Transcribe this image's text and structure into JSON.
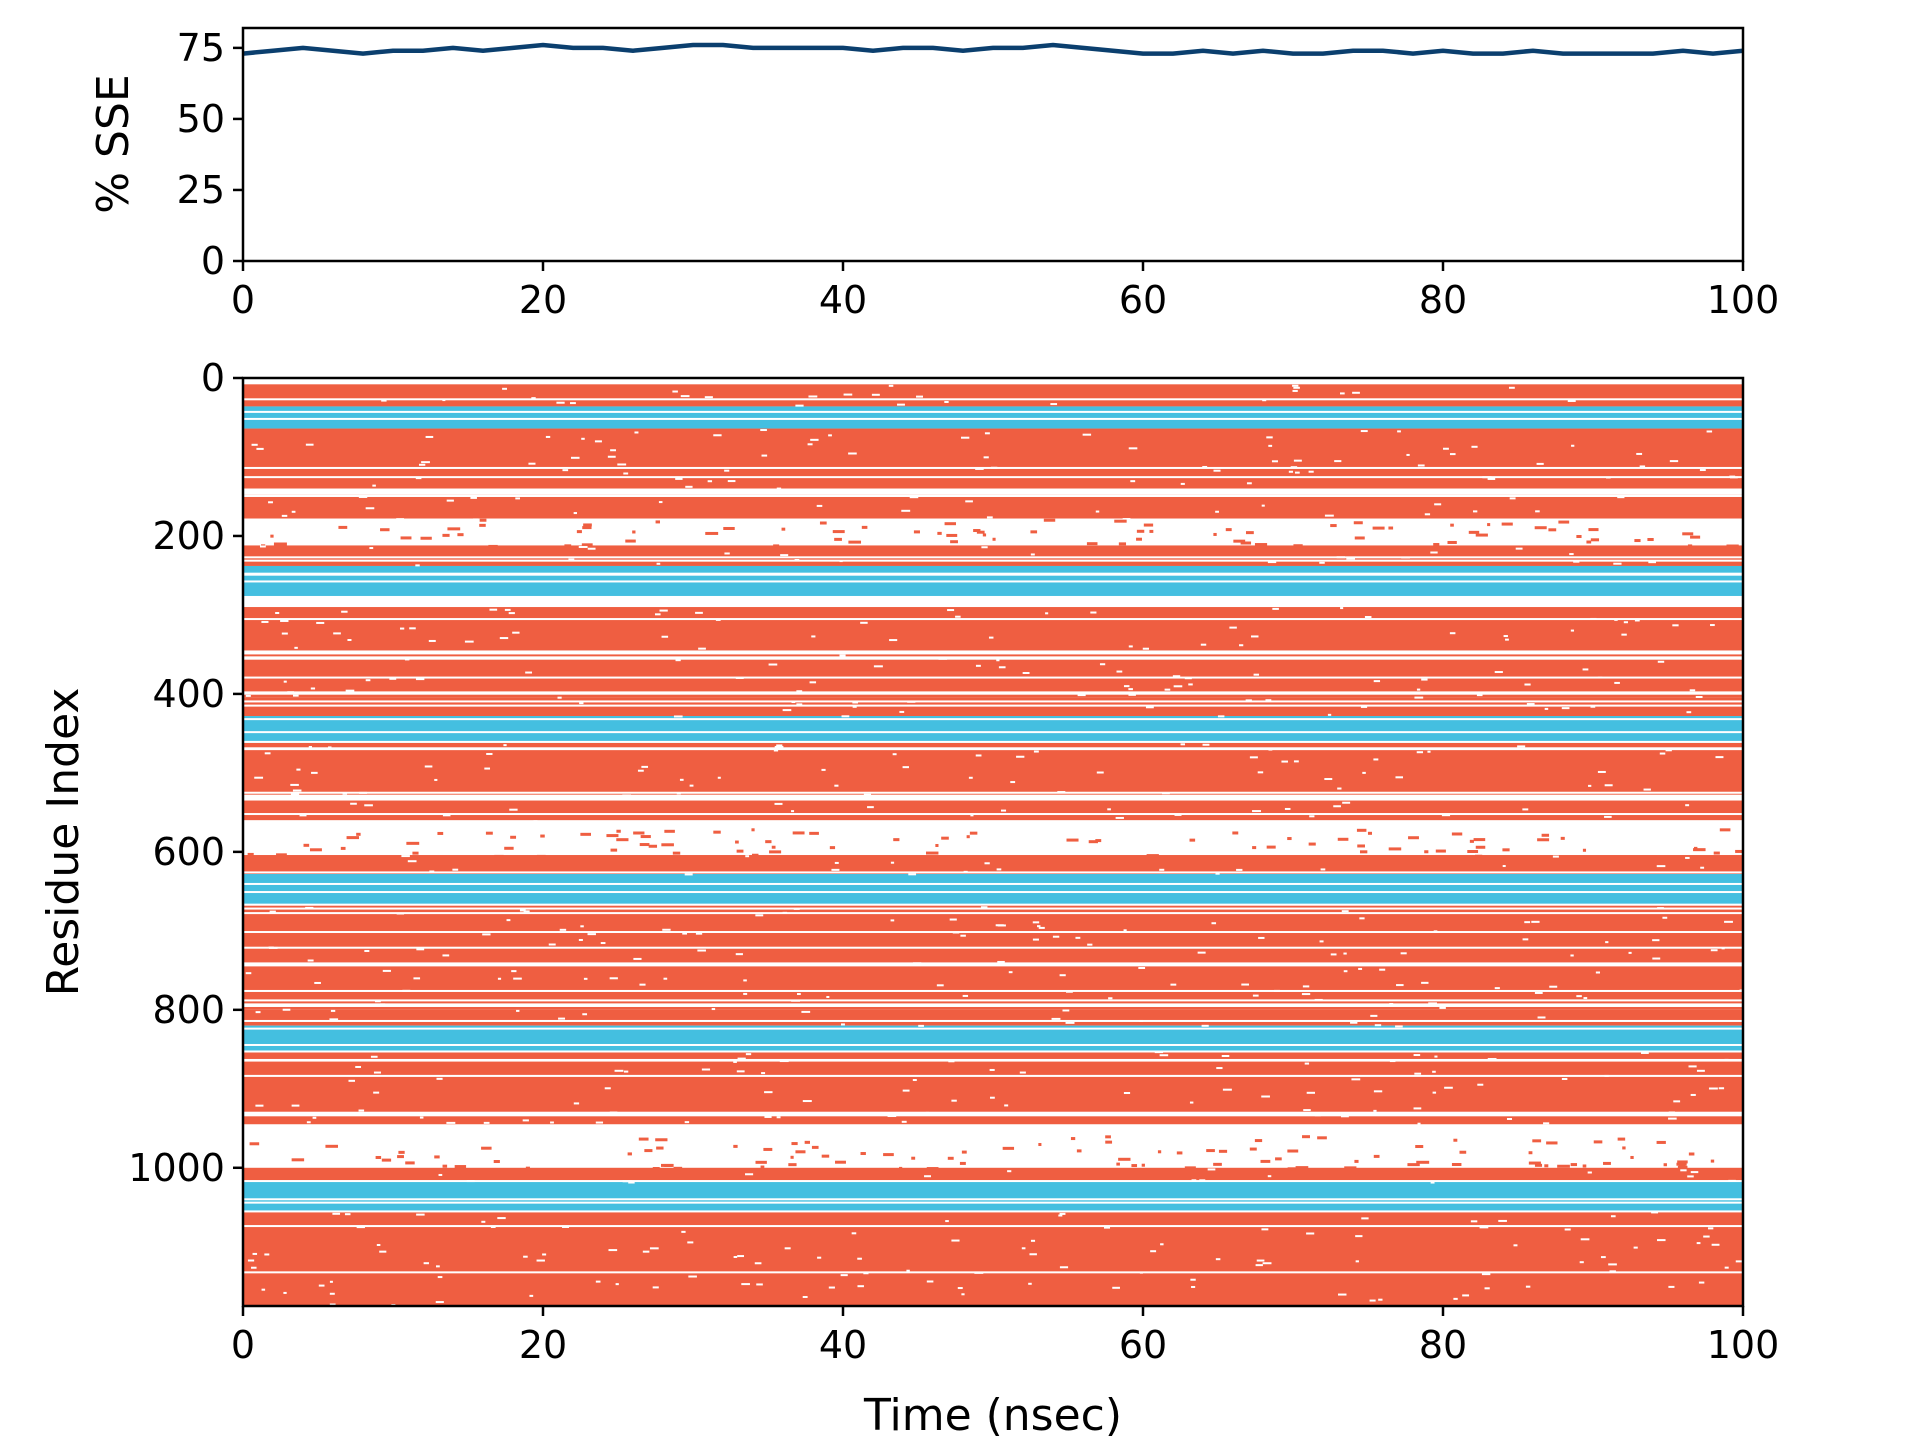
{
  "chart_data": [
    {
      "type": "line",
      "title": "",
      "xlabel": "",
      "ylabel": "% SSE",
      "xlim": [
        0,
        100
      ],
      "ylim": [
        0,
        82
      ],
      "xticks": [
        "0",
        "20",
        "40",
        "60",
        "80",
        "100"
      ],
      "yticks": [
        "0",
        "25",
        "50",
        "75"
      ],
      "grid": false,
      "line_color": "#0b3f6e",
      "series": [
        {
          "x": [
            0,
            2,
            4,
            6,
            8,
            10,
            12,
            14,
            16,
            18,
            20,
            22,
            24,
            26,
            28,
            30,
            32,
            34,
            36,
            38,
            40,
            42,
            44,
            46,
            48,
            50,
            52,
            54,
            56,
            58,
            60,
            62,
            64,
            66,
            68,
            70,
            72,
            74,
            76,
            78,
            80,
            82,
            84,
            86,
            88,
            90,
            92,
            94,
            96,
            98,
            100
          ],
          "values": [
            73,
            74,
            75,
            74,
            73,
            74,
            74,
            75,
            74,
            75,
            76,
            75,
            75,
            74,
            75,
            76,
            76,
            75,
            75,
            75,
            75,
            74,
            75,
            75,
            74,
            75,
            75,
            76,
            75,
            74,
            73,
            73,
            74,
            73,
            74,
            73,
            73,
            74,
            74,
            73,
            74,
            73,
            73,
            74,
            73,
            73,
            73,
            73,
            74,
            73,
            74
          ]
        }
      ]
    },
    {
      "type": "heatmap",
      "title": "",
      "xlabel": "Time (nsec)",
      "ylabel": "Residue Index",
      "xlim": [
        0,
        100
      ],
      "ylim": [
        1175,
        0
      ],
      "xticks": [
        "0",
        "20",
        "40",
        "60",
        "80",
        "100"
      ],
      "yticks": [
        "0",
        "200",
        "400",
        "600",
        "800",
        "1000"
      ],
      "colors": {
        "helix": "#ef5e41",
        "strand": "#44bfe0",
        "none": "#ffffff"
      },
      "bands": [
        {
          "from": 0,
          "to": 8,
          "type": "none"
        },
        {
          "from": 8,
          "to": 36,
          "type": "helix"
        },
        {
          "from": 36,
          "to": 64,
          "type": "strand"
        },
        {
          "from": 64,
          "to": 140,
          "type": "helix"
        },
        {
          "from": 140,
          "to": 148,
          "type": "none"
        },
        {
          "from": 148,
          "to": 178,
          "type": "helix"
        },
        {
          "from": 178,
          "to": 212,
          "type": "none"
        },
        {
          "from": 212,
          "to": 238,
          "type": "helix"
        },
        {
          "from": 238,
          "to": 276,
          "type": "strand"
        },
        {
          "from": 276,
          "to": 290,
          "type": "none"
        },
        {
          "from": 290,
          "to": 345,
          "type": "helix"
        },
        {
          "from": 345,
          "to": 350,
          "type": "none"
        },
        {
          "from": 350,
          "to": 405,
          "type": "helix"
        },
        {
          "from": 405,
          "to": 428,
          "type": "helix"
        },
        {
          "from": 428,
          "to": 462,
          "type": "strand"
        },
        {
          "from": 462,
          "to": 530,
          "type": "helix"
        },
        {
          "from": 530,
          "to": 535,
          "type": "none"
        },
        {
          "from": 535,
          "to": 560,
          "type": "helix"
        },
        {
          "from": 560,
          "to": 570,
          "type": "none"
        },
        {
          "from": 570,
          "to": 604,
          "type": "none"
        },
        {
          "from": 604,
          "to": 628,
          "type": "helix"
        },
        {
          "from": 628,
          "to": 668,
          "type": "strand"
        },
        {
          "from": 668,
          "to": 740,
          "type": "helix"
        },
        {
          "from": 740,
          "to": 745,
          "type": "none"
        },
        {
          "from": 745,
          "to": 800,
          "type": "helix"
        },
        {
          "from": 800,
          "to": 820,
          "type": "helix"
        },
        {
          "from": 820,
          "to": 852,
          "type": "strand"
        },
        {
          "from": 852,
          "to": 945,
          "type": "helix"
        },
        {
          "from": 945,
          "to": 958,
          "type": "none"
        },
        {
          "from": 958,
          "to": 1000,
          "type": "none"
        },
        {
          "from": 1000,
          "to": 1018,
          "type": "helix"
        },
        {
          "from": 1018,
          "to": 1055,
          "type": "strand"
        },
        {
          "from": 1055,
          "to": 1175,
          "type": "helix"
        }
      ]
    }
  ]
}
